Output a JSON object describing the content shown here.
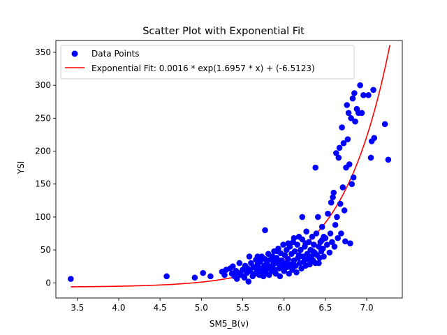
{
  "chart_data": {
    "type": "scatter",
    "title": "Scatter Plot with Exponential Fit",
    "xlabel": "SM5_B(v)",
    "ylabel": "YSI",
    "xlim": [
      3.24,
      7.43
    ],
    "ylim": [
      -23,
      368
    ],
    "xticks": [
      3.5,
      4.0,
      4.5,
      5.0,
      5.5,
      6.0,
      6.5,
      7.0
    ],
    "xtick_labels": [
      "3.5",
      "4.0",
      "4.5",
      "5.0",
      "5.5",
      "6.0",
      "6.5",
      "7.0"
    ],
    "yticks": [
      0,
      50,
      100,
      150,
      200,
      250,
      300,
      350
    ],
    "ytick_labels": [
      "0",
      "50",
      "100",
      "150",
      "200",
      "250",
      "300",
      "350"
    ],
    "grid": false,
    "legend_position": "top-left",
    "colors": {
      "points": "#0000ff",
      "fit": "#ff0000"
    },
    "series": [
      {
        "name": "Data Points",
        "kind": "scatter",
        "points": [
          [
            3.42,
            6
          ],
          [
            4.58,
            10
          ],
          [
            4.92,
            8
          ],
          [
            5.02,
            15
          ],
          [
            5.11,
            10
          ],
          [
            5.25,
            17
          ],
          [
            5.28,
            12
          ],
          [
            5.3,
            20
          ],
          [
            5.35,
            22
          ],
          [
            5.37,
            14
          ],
          [
            5.38,
            25
          ],
          [
            5.4,
            10
          ],
          [
            5.42,
            18
          ],
          [
            5.43,
            6
          ],
          [
            5.45,
            15
          ],
          [
            5.46,
            30
          ],
          [
            5.48,
            12
          ],
          [
            5.5,
            20
          ],
          [
            5.52,
            8
          ],
          [
            5.53,
            26
          ],
          [
            5.55,
            15
          ],
          [
            5.56,
            22
          ],
          [
            5.57,
            2
          ],
          [
            5.58,
            40
          ],
          [
            5.59,
            18
          ],
          [
            5.6,
            30
          ],
          [
            5.62,
            10
          ],
          [
            5.63,
            24
          ],
          [
            5.65,
            14
          ],
          [
            5.66,
            35
          ],
          [
            5.67,
            20
          ],
          [
            5.68,
            28
          ],
          [
            5.7,
            12
          ],
          [
            5.71,
            32
          ],
          [
            5.72,
            22
          ],
          [
            5.73,
            40
          ],
          [
            5.74,
            18
          ],
          [
            5.75,
            10
          ],
          [
            5.76,
            26
          ],
          [
            5.77,
            36
          ],
          [
            5.78,
            15
          ],
          [
            5.79,
            30
          ],
          [
            5.8,
            22
          ],
          [
            5.81,
            44
          ],
          [
            5.82,
            12
          ],
          [
            5.83,
            35
          ],
          [
            5.84,
            25
          ],
          [
            5.85,
            18
          ],
          [
            5.86,
            40
          ],
          [
            5.87,
            28
          ],
          [
            5.88,
            48
          ],
          [
            5.89,
            20
          ],
          [
            5.9,
            14
          ],
          [
            5.91,
            38
          ],
          [
            5.92,
            30
          ],
          [
            5.93,
            52
          ],
          [
            5.94,
            22
          ],
          [
            5.95,
            10
          ],
          [
            5.96,
            45
          ],
          [
            5.97,
            34
          ],
          [
            5.98,
            26
          ],
          [
            5.99,
            58
          ],
          [
            6.0,
            18
          ],
          [
            6.01,
            42
          ],
          [
            6.02,
            30
          ],
          [
            6.03,
            50
          ],
          [
            6.04,
            24
          ],
          [
            6.05,
            36
          ],
          [
            6.06,
            14
          ],
          [
            6.07,
            55
          ],
          [
            6.08,
            28
          ],
          [
            6.09,
            44
          ],
          [
            6.1,
            20
          ],
          [
            6.11,
            62
          ],
          [
            6.12,
            34
          ],
          [
            6.13,
            48
          ],
          [
            6.14,
            26
          ],
          [
            6.15,
            16
          ],
          [
            6.16,
            58
          ],
          [
            6.17,
            38
          ],
          [
            6.18,
            70
          ],
          [
            6.19,
            30
          ],
          [
            6.2,
            50
          ],
          [
            6.21,
            22
          ],
          [
            6.22,
            66
          ],
          [
            6.23,
            40
          ],
          [
            6.24,
            32
          ],
          [
            6.25,
            55
          ],
          [
            6.26,
            26
          ],
          [
            6.27,
            78
          ],
          [
            6.28,
            44
          ],
          [
            6.29,
            36
          ],
          [
            6.3,
            62
          ],
          [
            6.31,
            28
          ],
          [
            6.32,
            50
          ],
          [
            6.33,
            40
          ],
          [
            6.34,
            70
          ],
          [
            6.35,
            34
          ],
          [
            6.36,
            58
          ],
          [
            6.37,
            46
          ],
          [
            6.38,
            30
          ],
          [
            6.39,
            75
          ],
          [
            6.4,
            42
          ],
          [
            6.41,
            100
          ],
          [
            6.42,
            55
          ],
          [
            6.43,
            38
          ],
          [
            6.44,
            62
          ],
          [
            6.45,
            48
          ],
          [
            6.46,
            85
          ],
          [
            6.47,
            52
          ],
          [
            6.48,
            40
          ],
          [
            6.5,
            68
          ],
          [
            6.52,
            58
          ],
          [
            6.53,
            105
          ],
          [
            6.55,
            46
          ],
          [
            6.56,
            75
          ],
          [
            6.58,
            62
          ],
          [
            6.59,
            130
          ],
          [
            6.6,
            137
          ],
          [
            6.61,
            55
          ],
          [
            6.62,
            88
          ],
          [
            6.63,
            197
          ],
          [
            6.64,
            100
          ],
          [
            6.65,
            68
          ],
          [
            6.66,
            190
          ],
          [
            6.67,
            205
          ],
          [
            6.68,
            120
          ],
          [
            6.69,
            75
          ],
          [
            6.7,
            236
          ],
          [
            6.71,
            145
          ],
          [
            6.72,
            212
          ],
          [
            6.73,
            110
          ],
          [
            6.74,
            63
          ],
          [
            6.75,
            175
          ],
          [
            6.76,
            270
          ],
          [
            6.77,
            218
          ],
          [
            6.78,
            258
          ],
          [
            6.79,
            180
          ],
          [
            6.8,
            60
          ],
          [
            6.81,
            250
          ],
          [
            6.82,
            150
          ],
          [
            6.83,
            280
          ],
          [
            6.84,
            160
          ],
          [
            6.85,
            288
          ],
          [
            6.86,
            245
          ],
          [
            6.88,
            264
          ],
          [
            6.9,
            258
          ],
          [
            6.92,
            300
          ],
          [
            6.94,
            258
          ],
          [
            6.96,
            285
          ],
          [
            7.02,
            285
          ],
          [
            7.05,
            190
          ],
          [
            7.06,
            215
          ],
          [
            7.08,
            293
          ],
          [
            7.09,
            220
          ],
          [
            7.22,
            241
          ],
          [
            7.26,
            187
          ],
          [
            6.38,
            175
          ],
          [
            6.22,
            100
          ],
          [
            5.77,
            80
          ],
          [
            5.68,
            40
          ],
          [
            6.05,
            60
          ],
          [
            5.92,
            48
          ],
          [
            6.12,
            68
          ],
          [
            6.26,
            60
          ],
          [
            6.48,
            70
          ],
          [
            6.35,
            48
          ],
          [
            6.57,
            122
          ],
          [
            6.42,
            30
          ],
          [
            6.46,
            65
          ],
          [
            6.18,
            42
          ],
          [
            5.89,
            34
          ],
          [
            6.02,
            26
          ],
          [
            5.73,
            15
          ],
          [
            6.25,
            35
          ]
        ]
      },
      {
        "name": "Exponential Fit: 0.0016 * exp(1.6957 * x) + (-6.5123)",
        "kind": "line",
        "equation": {
          "a": 0.0016,
          "b": 1.6957,
          "c": -6.5123
        },
        "x_range": [
          3.42,
          7.28
        ]
      }
    ]
  }
}
